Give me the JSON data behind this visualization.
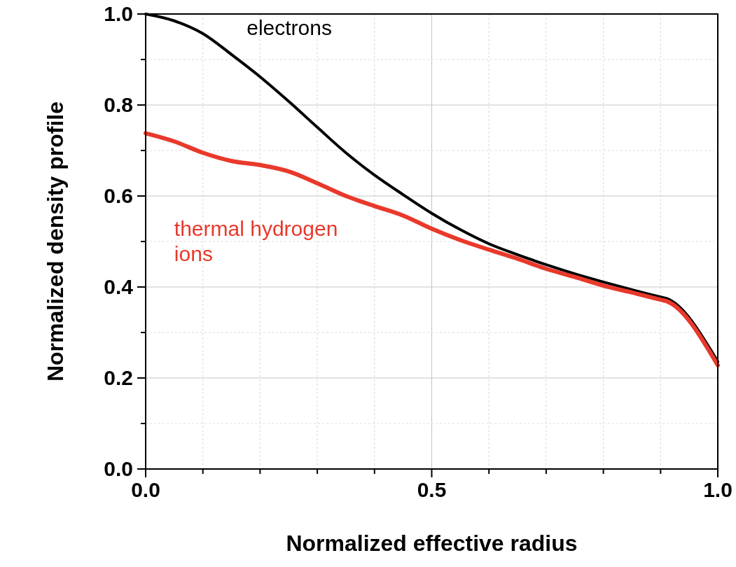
{
  "chart_data": {
    "type": "line",
    "xlabel": "Normalized effective radius",
    "ylabel": "Normalized density profile",
    "xlim": [
      0,
      1
    ],
    "ylim": [
      0,
      1
    ],
    "xticks": [
      {
        "value": 0,
        "label": "0.0"
      },
      {
        "value": 0.1,
        "label": null
      },
      {
        "value": 0.2,
        "label": null
      },
      {
        "value": 0.3,
        "label": null
      },
      {
        "value": 0.4,
        "label": null
      },
      {
        "value": 0.5,
        "label": "0.5"
      },
      {
        "value": 0.6,
        "label": null
      },
      {
        "value": 0.7,
        "label": null
      },
      {
        "value": 0.8,
        "label": null
      },
      {
        "value": 0.9,
        "label": null
      },
      {
        "value": 1,
        "label": "1.0"
      }
    ],
    "yticks": [
      {
        "value": 0,
        "label": "0.0"
      },
      {
        "value": 0.1,
        "label": null
      },
      {
        "value": 0.2,
        "label": "0.2"
      },
      {
        "value": 0.3,
        "label": null
      },
      {
        "value": 0.4,
        "label": "0.4"
      },
      {
        "value": 0.5,
        "label": null
      },
      {
        "value": 0.6,
        "label": "0.6"
      },
      {
        "value": 0.7,
        "label": null
      },
      {
        "value": 0.8,
        "label": "0.8"
      },
      {
        "value": 0.9,
        "label": null
      },
      {
        "value": 1,
        "label": "1.0"
      }
    ],
    "grid": true,
    "legend": false,
    "marker": "none",
    "line_style": "solid",
    "x": [
      0,
      0.05,
      0.1,
      0.15,
      0.2,
      0.25,
      0.3,
      0.35,
      0.4,
      0.45,
      0.5,
      0.55,
      0.6,
      0.65,
      0.7,
      0.75,
      0.8,
      0.85,
      0.9,
      0.91,
      1
    ],
    "series": [
      {
        "name": "electrons",
        "color": "#000000",
        "values": [
          1.0,
          0.985,
          0.957,
          0.911,
          0.862,
          0.808,
          0.751,
          0.695,
          0.646,
          0.603,
          0.562,
          0.526,
          0.495,
          0.471,
          0.449,
          0.429,
          0.411,
          0.394,
          0.378,
          0.375,
          0.236
        ]
      },
      {
        "name": "thermal hydrogen ions",
        "color": "#e8392b",
        "values": [
          0.738,
          0.72,
          0.695,
          0.677,
          0.668,
          0.654,
          0.628,
          0.6,
          0.578,
          0.557,
          0.528,
          0.503,
          0.482,
          0.462,
          0.44,
          0.422,
          0.403,
          0.388,
          0.372,
          0.369,
          0.228
        ]
      }
    ]
  }
}
